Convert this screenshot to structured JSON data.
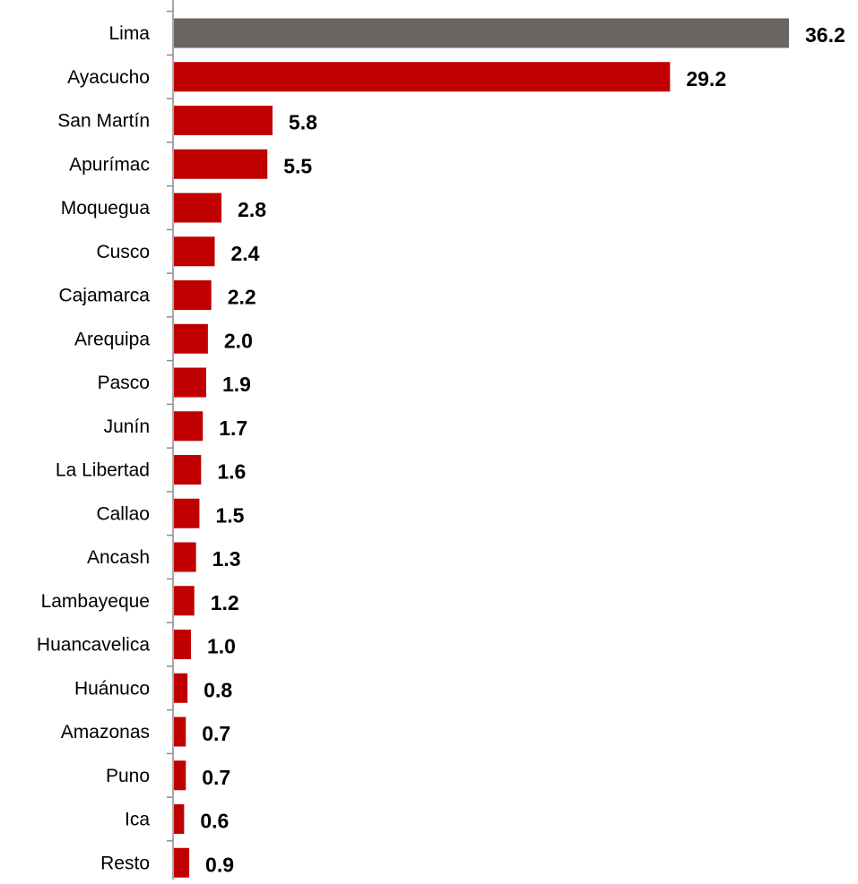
{
  "chart_data": {
    "type": "bar",
    "orientation": "horizontal",
    "categories": [
      "Lima",
      "Ayacucho",
      "San Martín",
      "Apurímac",
      "Moquegua",
      "Cusco",
      "Cajamarca",
      "Arequipa",
      "Pasco",
      "Junín",
      "La Libertad",
      "Callao",
      "Ancash",
      "Lambayeque",
      "Huancavelica",
      "Huánuco",
      "Amazonas",
      "Puno",
      "Ica",
      "Resto"
    ],
    "values": [
      36.2,
      29.2,
      5.8,
      5.5,
      2.8,
      2.4,
      2.2,
      2.0,
      1.9,
      1.7,
      1.6,
      1.5,
      1.3,
      1.2,
      1.0,
      0.8,
      0.7,
      0.7,
      0.6,
      0.9
    ],
    "value_labels": [
      "36.2",
      "29.2",
      "5.8",
      "5.5",
      "2.8",
      "2.4",
      "2.2",
      "2.0",
      "1.9",
      "1.7",
      "1.6",
      "1.5",
      "1.3",
      "1.2",
      "1.0",
      "0.8",
      "0.7",
      "0.7",
      "0.6",
      "0.9"
    ],
    "bar_colors": [
      "#6b6563",
      "#c00000",
      "#c00000",
      "#c00000",
      "#c00000",
      "#c00000",
      "#c00000",
      "#c00000",
      "#c00000",
      "#c00000",
      "#c00000",
      "#c00000",
      "#c00000",
      "#c00000",
      "#c00000",
      "#c00000",
      "#c00000",
      "#c00000",
      "#c00000",
      "#c00000"
    ],
    "xlim": [
      0,
      36.2
    ],
    "grid": false,
    "legend": "none",
    "title": "",
    "xlabel": "",
    "ylabel": ""
  }
}
